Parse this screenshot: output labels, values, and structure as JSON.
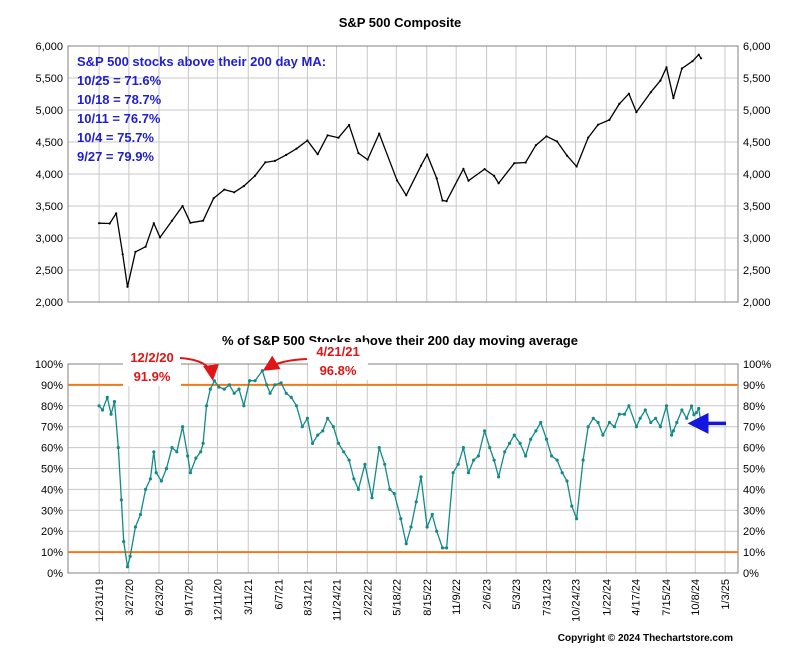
{
  "chart_data": [
    {
      "type": "line",
      "title": "S&P 500 Composite",
      "ylim": [
        2000,
        6000
      ],
      "y_ticks": [
        2000,
        2500,
        3000,
        3500,
        4000,
        4500,
        5000,
        5500,
        6000
      ],
      "y_tick_labels": [
        "2,000",
        "2,500",
        "3,000",
        "3,500",
        "4,000",
        "4,500",
        "5,000",
        "5,500",
        "6,000"
      ],
      "grid": true,
      "line_color": "#000000",
      "annotation_color": "#1f1fd0",
      "annotation_lines": [
        "S&P 500 stocks above their 200 day MA:",
        "10/25 = 71.6%",
        "10/18 = 78.7%",
        "10/11 = 76.7%",
        "10/4 = 75.7%",
        "9/27 = 79.9%"
      ],
      "series": [
        {
          "x": [
            "2019-12-31",
            "2020-01-31",
            "2020-02-19",
            "2020-03-09",
            "2020-03-23",
            "2020-04-15",
            "2020-05-15",
            "2020-06-08",
            "2020-06-26",
            "2020-07-31",
            "2020-08-31",
            "2020-09-23",
            "2020-10-30",
            "2020-11-30",
            "2020-12-31",
            "2021-01-29",
            "2021-02-26",
            "2021-03-31",
            "2021-04-30",
            "2021-05-28",
            "2021-06-30",
            "2021-07-30",
            "2021-08-31",
            "2021-09-30",
            "2021-10-29",
            "2021-11-30",
            "2021-12-31",
            "2022-01-27",
            "2022-02-23",
            "2022-03-29",
            "2022-05-20",
            "2022-06-16",
            "2022-07-29",
            "2022-08-16",
            "2022-09-13",
            "2022-09-30",
            "2022-10-12",
            "2022-11-30",
            "2022-12-15",
            "2023-01-31",
            "2023-02-28",
            "2023-03-13",
            "2023-04-28",
            "2023-05-31",
            "2023-06-30",
            "2023-07-31",
            "2023-08-31",
            "2023-09-29",
            "2023-10-27",
            "2023-11-30",
            "2023-12-29",
            "2024-01-31",
            "2024-02-29",
            "2024-03-28",
            "2024-04-19",
            "2024-05-31",
            "2024-06-28",
            "2024-07-16",
            "2024-08-05",
            "2024-08-30",
            "2024-09-30",
            "2024-10-18",
            "2024-10-25"
          ],
          "y": [
            3231,
            3226,
            3386,
            2746,
            2237,
            2783,
            2864,
            3232,
            3009,
            3271,
            3500,
            3237,
            3270,
            3622,
            3756,
            3714,
            3811,
            3973,
            4181,
            4204,
            4298,
            4395,
            4523,
            4308,
            4605,
            4567,
            4766,
            4327,
            4225,
            4632,
            3901,
            3667,
            4130,
            4305,
            3932,
            3586,
            3577,
            4080,
            3895,
            4077,
            3970,
            3855,
            4169,
            4180,
            4450,
            4589,
            4508,
            4288,
            4117,
            4568,
            4770,
            4846,
            5096,
            5254,
            4967,
            5278,
            5460,
            5667,
            5186,
            5648,
            5762,
            5864,
            5808
          ]
        }
      ]
    },
    {
      "type": "line",
      "title": "% of S&P 500 Stocks above their 200 day moving average",
      "ylim": [
        0,
        100
      ],
      "y_ticks": [
        0,
        10,
        20,
        30,
        40,
        50,
        60,
        70,
        80,
        90,
        100
      ],
      "y_tick_labels": [
        "0%",
        "10%",
        "20%",
        "30%",
        "40%",
        "50%",
        "60%",
        "70%",
        "80%",
        "90%",
        "100%"
      ],
      "x_tick_labels": [
        "12/31/19",
        "3/27/20",
        "6/23/20",
        "9/17/20",
        "12/11/20",
        "3/11/21",
        "6/7/21",
        "8/31/21",
        "11/24/21",
        "2/22/22",
        "5/18/22",
        "8/15/22",
        "11/9/22",
        "2/6/23",
        "5/3/23",
        "7/31/23",
        "10/24/23",
        "1/22/24",
        "4/17/24",
        "7/15/24",
        "10/8/24",
        "1/3/25"
      ],
      "grid": true,
      "line_color": "#138a8a",
      "reference_lines": [
        {
          "value": 90,
          "color": "#f07818"
        },
        {
          "value": 10,
          "color": "#f07818"
        }
      ],
      "annotations": [
        {
          "date": "12/2/20",
          "value_label": "91.9%",
          "color": "#e01515"
        },
        {
          "date": "4/21/21",
          "value_label": "96.8%",
          "color": "#e01515"
        }
      ],
      "current_marker_color": "#1515e0",
      "series": [
        {
          "x": [
            "2019-12-31",
            "2020-01-10",
            "2020-01-24",
            "2020-02-04",
            "2020-02-14",
            "2020-02-25",
            "2020-03-05",
            "2020-03-12",
            "2020-03-23",
            "2020-03-31",
            "2020-04-15",
            "2020-04-30",
            "2020-05-15",
            "2020-05-29",
            "2020-06-08",
            "2020-06-15",
            "2020-06-30",
            "2020-07-15",
            "2020-07-31",
            "2020-08-14",
            "2020-08-31",
            "2020-09-15",
            "2020-09-23",
            "2020-10-09",
            "2020-10-23",
            "2020-10-30",
            "2020-11-09",
            "2020-11-20",
            "2020-12-02",
            "2020-12-15",
            "2020-12-31",
            "2021-01-15",
            "2021-01-29",
            "2021-02-12",
            "2021-02-26",
            "2021-03-15",
            "2021-03-31",
            "2021-04-21",
            "2021-05-04",
            "2021-05-14",
            "2021-05-28",
            "2021-06-15",
            "2021-06-30",
            "2021-07-15",
            "2021-07-30",
            "2021-08-16",
            "2021-08-31",
            "2021-09-15",
            "2021-09-30",
            "2021-10-15",
            "2021-10-29",
            "2021-11-15",
            "2021-11-30",
            "2021-12-15",
            "2021-12-31",
            "2022-01-14",
            "2022-01-27",
            "2022-02-15",
            "2022-03-08",
            "2022-03-29",
            "2022-04-14",
            "2022-04-29",
            "2022-05-12",
            "2022-05-31",
            "2022-06-16",
            "2022-06-30",
            "2022-07-15",
            "2022-07-29",
            "2022-08-16",
            "2022-08-31",
            "2022-09-13",
            "2022-09-30",
            "2022-10-12",
            "2022-10-31",
            "2022-11-15",
            "2022-11-30",
            "2022-12-15",
            "2022-12-30",
            "2023-01-13",
            "2023-01-31",
            "2023-02-15",
            "2023-02-28",
            "2023-03-13",
            "2023-03-31",
            "2023-04-14",
            "2023-04-28",
            "2023-05-15",
            "2023-05-31",
            "2023-06-15",
            "2023-06-30",
            "2023-07-14",
            "2023-07-31",
            "2023-08-15",
            "2023-08-31",
            "2023-09-15",
            "2023-09-29",
            "2023-10-13",
            "2023-10-27",
            "2023-11-15",
            "2023-11-30",
            "2023-12-15",
            "2023-12-29",
            "2024-01-12",
            "2024-01-31",
            "2024-02-15",
            "2024-02-29",
            "2024-03-15",
            "2024-03-28",
            "2024-04-19",
            "2024-04-30",
            "2024-05-15",
            "2024-05-31",
            "2024-06-14",
            "2024-06-28",
            "2024-07-16",
            "2024-07-31",
            "2024-08-05",
            "2024-08-15",
            "2024-08-30",
            "2024-09-13",
            "2024-09-27",
            "2024-10-04",
            "2024-10-11",
            "2024-10-18",
            "2024-10-25"
          ],
          "y": [
            80,
            78,
            84,
            76,
            82,
            60,
            35,
            15,
            3,
            8,
            22,
            28,
            40,
            45,
            58,
            48,
            44,
            50,
            60,
            58,
            70,
            56,
            48,
            55,
            58,
            62,
            80,
            88,
            91.9,
            89,
            88,
            90,
            86,
            88,
            80,
            92,
            92,
            96.8,
            90,
            86,
            90,
            91,
            86,
            84,
            80,
            70,
            74,
            62,
            66,
            68,
            74,
            70,
            62,
            58,
            54,
            45,
            40,
            52,
            36,
            60,
            52,
            40,
            38,
            26,
            14,
            22,
            34,
            46,
            22,
            28,
            20,
            12,
            12,
            48,
            52,
            60,
            48,
            54,
            56,
            68,
            60,
            54,
            46,
            58,
            62,
            66,
            62,
            56,
            64,
            68,
            72,
            64,
            56,
            54,
            48,
            44,
            32,
            26,
            54,
            70,
            74,
            72,
            66,
            72,
            70,
            76,
            76,
            80,
            70,
            74,
            78,
            72,
            74,
            70,
            80,
            66,
            68,
            72,
            78,
            74,
            79.9,
            75.7,
            76.7,
            78.7,
            71.6
          ]
        }
      ]
    }
  ],
  "copyright": "Copyright © 2024 Thechartstore.com"
}
